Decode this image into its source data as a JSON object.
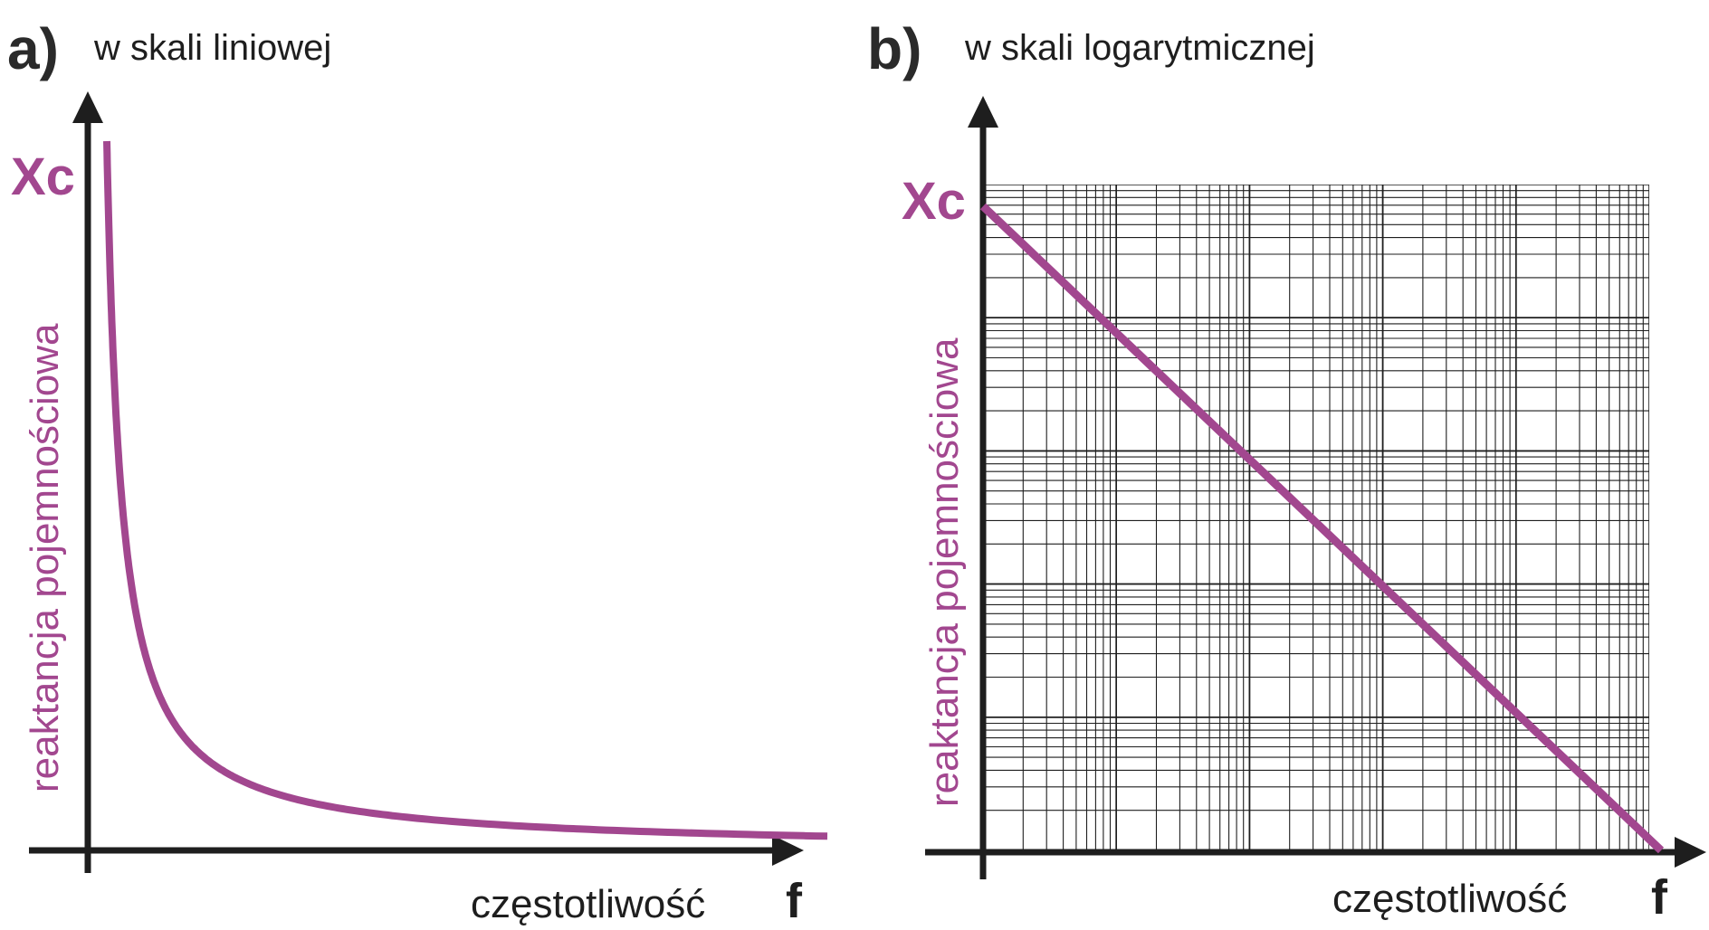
{
  "colors": {
    "curve": "#a2478f",
    "axis": "#1e1e1e",
    "grid": "#1e1e1e"
  },
  "chart_data": [
    {
      "type": "line",
      "panel_letter": "a)",
      "title": "w skali liniowej",
      "ylabel": "reaktancja pojemnościowa",
      "y_tick_label": "Xc",
      "xlabel": "częstotliwość",
      "x_axis_symbol": "f",
      "xscale": "linear",
      "yscale": "linear",
      "grid": false,
      "relation": "Xc = k / f",
      "series": [
        {
          "x": [
            0.2,
            0.3,
            0.5,
            0.75,
            1,
            1.5,
            2,
            3,
            4,
            5,
            6,
            7,
            8,
            9,
            10
          ],
          "y": [
            6.5,
            4.33,
            2.6,
            1.73,
            1.3,
            0.87,
            0.65,
            0.43,
            0.33,
            0.26,
            0.22,
            0.19,
            0.16,
            0.14,
            0.13
          ]
        }
      ]
    },
    {
      "type": "line",
      "panel_letter": "b)",
      "title": "w skali logarytmicznej",
      "ylabel": "reaktancja pojemnościowa",
      "y_tick_label": "Xc",
      "xlabel": "częstotliwość",
      "x_axis_symbol": "f",
      "xscale": "log",
      "yscale": "log",
      "grid": true,
      "decades_x": 5,
      "decades_y": 5,
      "series": [
        {
          "x": [
            1,
            10,
            100,
            1000,
            10000,
            100000
          ],
          "y": [
            100000,
            10000,
            1000,
            100,
            10,
            1
          ]
        }
      ]
    }
  ]
}
